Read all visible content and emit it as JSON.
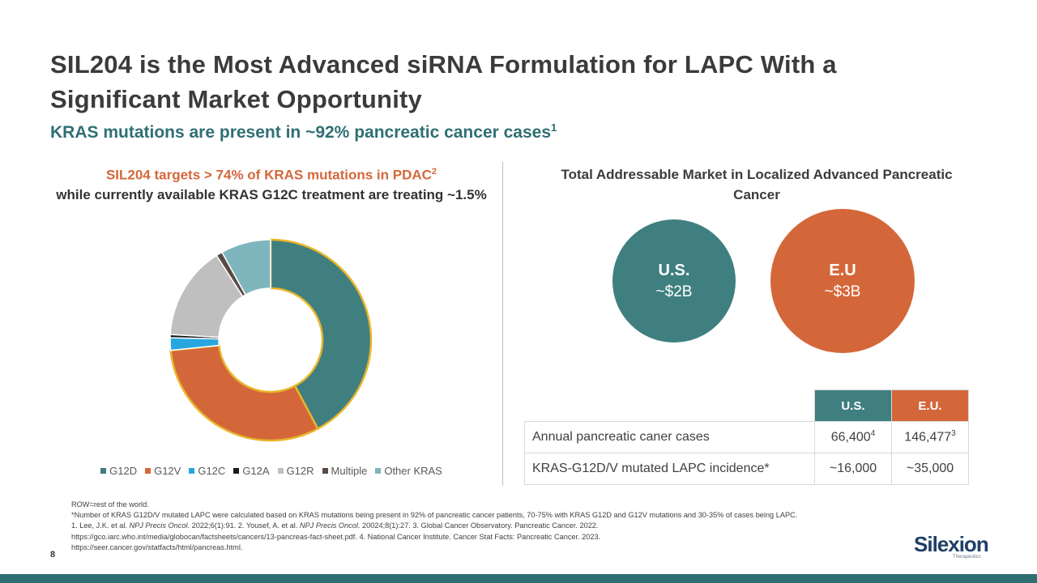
{
  "slide": {
    "title": "SIL204 is the Most Advanced siRNA Formulation for LAPC With a Significant Market Opportunity",
    "subtitle": "KRAS mutations are present in ~92% pancreatic cancer cases",
    "subtitle_ref": "1",
    "page_number": "8"
  },
  "left_panel": {
    "heading_accent": "SIL204 targets > 74% of KRAS mutations in PDAC",
    "heading_accent_ref": "2",
    "heading_rest": "while currently available KRAS G12C treatment are treating ~1.5%"
  },
  "chart_data": {
    "type": "pie",
    "donut": true,
    "title": "",
    "categories": [
      "G12D",
      "G12V",
      "G12C",
      "G12A",
      "G12R",
      "Multiple",
      "Other KRAS"
    ],
    "values": [
      42,
      31,
      2,
      0.5,
      15,
      1,
      8
    ],
    "colors": [
      "#3f7f80",
      "#d4673a",
      "#27a7df",
      "#1a1a1a",
      "#bfbfbf",
      "#5a4a45",
      "#7fb5bd"
    ],
    "highlighted": [
      "G12D",
      "G12V"
    ],
    "highlight_color": "#e8b52a",
    "legend_position": "bottom"
  },
  "right_panel": {
    "heading": "Total Addressable Market in Localized Advanced Pancreatic Cancer",
    "circles": [
      {
        "label": "U.S.",
        "value": "~$2B",
        "color": "#3f7f80"
      },
      {
        "label": "E.U",
        "value": "~$3B",
        "color": "#d4673a"
      }
    ]
  },
  "table": {
    "headers": [
      "",
      "U.S.",
      "E.U."
    ],
    "rows": [
      {
        "label": "Annual pancreatic caner cases",
        "us": "66,400",
        "us_ref": "4",
        "eu": "146,477",
        "eu_ref": "3"
      },
      {
        "label": "KRAS-G12D/V mutated LAPC incidence*",
        "us": "~16,000",
        "us_ref": "",
        "eu": "~35,000",
        "eu_ref": ""
      }
    ]
  },
  "footnotes": {
    "row_def": "ROW=rest of the world.",
    "asterisk": "*Number of KRAS G12D/V mutated LAPC were calculated based on KRAS mutations being present in 92% of pancreatic cancer patients, 70-75% with KRAS G12D and G12V mutations and 30-35% of cases being LAPC.",
    "ref1_a": "1. Lee, J.K. et al. ",
    "ref1_journal": "NPJ Precis Oncol",
    "ref1_b": ". 2022;6(1):91. 2. Yousef, A. et al. ",
    "ref2_journal": "NPJ Precis Oncol",
    "ref2_b": ". 20024;8(1):27. 3. Global Cancer Observatory. Pancreatic Cancer. 2022.",
    "line2": "https://gco.iarc.who.int/media/globocan/factsheets/cancers/13-pancreas-fact-sheet.pdf.  4. National Cancer Institute. Cancer Stat Facts: Pancreatic Cancer. 2023.",
    "line3": "https://seer.cancer.gov/statfacts/html/pancreas.html."
  },
  "logo": {
    "name": "Silexion",
    "tagline": "Therapeutics"
  }
}
